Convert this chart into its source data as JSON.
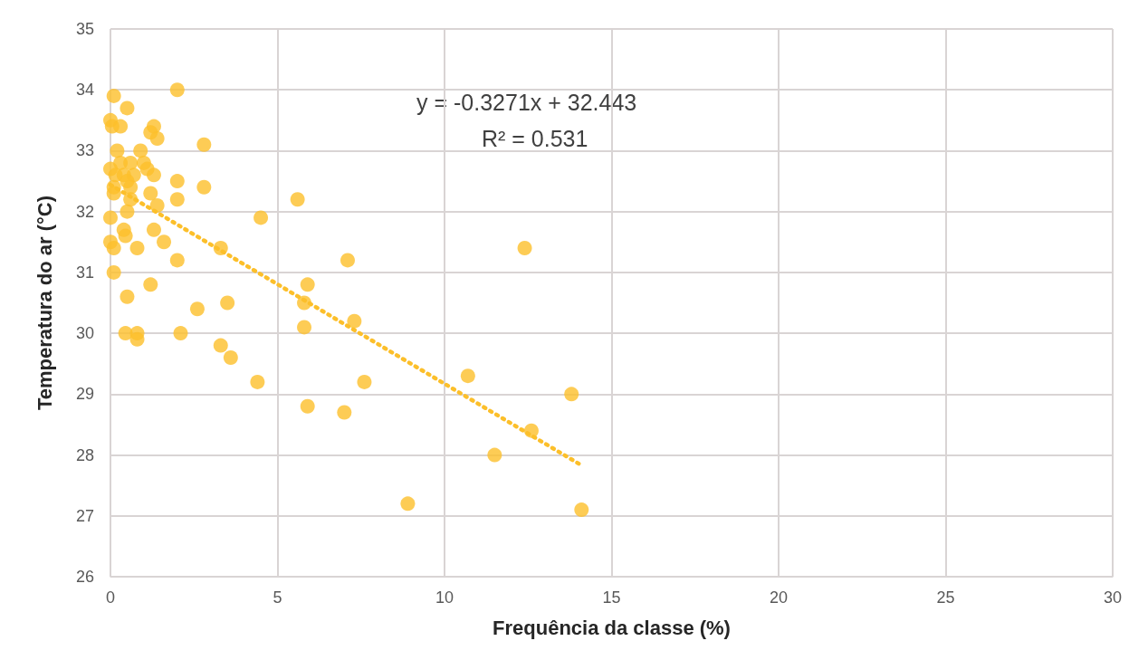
{
  "chart_data": {
    "type": "scatter",
    "xlabel": "Frequência da classe (%)",
    "ylabel": "Temperatura do ar (°C)",
    "xlim": [
      0,
      30
    ],
    "xticks": [
      0,
      5,
      10,
      15,
      20,
      25,
      30
    ],
    "ylim": [
      26,
      35
    ],
    "yticks": [
      26,
      27,
      28,
      29,
      30,
      31,
      32,
      33,
      34,
      35
    ],
    "grid": true,
    "marker": "circle",
    "annotations": [
      "y = -0.3271x + 32.443",
      "R² = 0.531"
    ],
    "series": [
      {
        "color": "#fcbf2a",
        "x": [
          0.1,
          0.5,
          0.0,
          0.05,
          0.3,
          2.0,
          1.3,
          1.2,
          1.4,
          2.8,
          0.2,
          0.9,
          0.0,
          0.3,
          0.6,
          1.0,
          1.1,
          0.15,
          0.4,
          0.7,
          1.3,
          0.5,
          2.0,
          0.1,
          0.6,
          2.8,
          0.1,
          1.2,
          0.6,
          2.0,
          1.4,
          0.5,
          0.0,
          4.5,
          5.6,
          0.4,
          1.3,
          0.45,
          0.0,
          1.6,
          0.1,
          0.8,
          3.3,
          12.4,
          7.1,
          2.0,
          0.1,
          5.9,
          1.2,
          0.5,
          3.5,
          5.8,
          2.6,
          7.3,
          5.8,
          0.45,
          0.8,
          2.1,
          0.8,
          3.3,
          3.6,
          10.7,
          4.4,
          7.6,
          13.8,
          5.9,
          7.0,
          12.6,
          11.5,
          8.9,
          14.1
        ],
        "values": [
          33.9,
          33.7,
          33.5,
          33.4,
          33.4,
          34.0,
          33.4,
          33.3,
          33.2,
          33.1,
          33.0,
          33.0,
          32.7,
          32.8,
          32.8,
          32.8,
          32.7,
          32.6,
          32.6,
          32.6,
          32.6,
          32.5,
          32.5,
          32.4,
          32.4,
          32.4,
          32.3,
          32.3,
          32.2,
          32.2,
          32.1,
          32.0,
          31.9,
          31.9,
          32.2,
          31.7,
          31.7,
          31.6,
          31.5,
          31.5,
          31.4,
          31.4,
          31.4,
          31.4,
          31.2,
          31.2,
          31.0,
          30.8,
          30.8,
          30.6,
          30.5,
          30.5,
          30.4,
          30.2,
          30.1,
          30.0,
          30.0,
          30.0,
          29.9,
          29.8,
          29.6,
          29.3,
          29.2,
          29.2,
          29.0,
          28.8,
          28.7,
          28.4,
          28.0,
          27.2,
          27.1
        ]
      },
      {
        "type": "line",
        "color": "#fcbf2a",
        "line_style": "dotted",
        "marker": "none",
        "x": [
          0,
          14.1
        ],
        "values": [
          32.44,
          27.83
        ]
      }
    ]
  }
}
